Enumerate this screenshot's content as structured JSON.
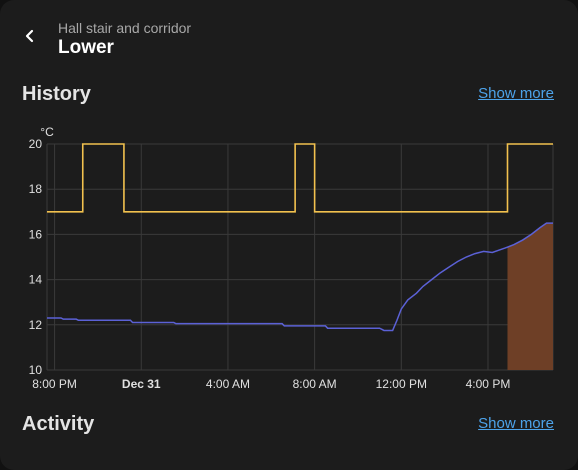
{
  "header": {
    "subtitle": "Hall stair and corridor",
    "title": "Lower",
    "back_icon": "chevron-left-icon"
  },
  "history": {
    "title": "History",
    "show_more": "Show more"
  },
  "activity": {
    "title": "Activity",
    "show_more": "Show more"
  },
  "colors": {
    "background": "#1c1c1c",
    "target_line": "#f2c14e",
    "current_line": "#5b61d6",
    "heating_fill": "#6e3f26",
    "link": "#4da3ea"
  },
  "chart_data": {
    "type": "line",
    "unit_label": "°C",
    "ylim": [
      10,
      20
    ],
    "y_ticks": [
      "10",
      "12",
      "14",
      "16",
      "18",
      "20"
    ],
    "x_range_hours": [
      -0.35,
      23.0
    ],
    "x_ticks": [
      {
        "label": "8:00 PM",
        "hour": 0,
        "bold": false
      },
      {
        "label": "Dec 31",
        "hour": 4,
        "bold": true
      },
      {
        "label": "4:00 AM",
        "hour": 8,
        "bold": false
      },
      {
        "label": "8:00 AM",
        "hour": 12,
        "bold": false
      },
      {
        "label": "12:00 PM",
        "hour": 16,
        "bold": false
      },
      {
        "label": "4:00 PM",
        "hour": 20,
        "bold": false
      }
    ],
    "grid": true,
    "series": [
      {
        "role": "target",
        "step": true,
        "points": [
          [
            -0.35,
            17
          ],
          [
            1.3,
            17
          ],
          [
            1.3,
            20
          ],
          [
            3.2,
            20
          ],
          [
            3.2,
            17
          ],
          [
            11.1,
            17
          ],
          [
            11.1,
            20
          ],
          [
            12.0,
            20
          ],
          [
            12.0,
            17
          ],
          [
            20.9,
            17
          ],
          [
            20.9,
            20
          ],
          [
            23.0,
            20
          ]
        ]
      },
      {
        "role": "current",
        "step": false,
        "points": [
          [
            -0.35,
            12.3
          ],
          [
            0.3,
            12.3
          ],
          [
            0.4,
            12.25
          ],
          [
            1.0,
            12.25
          ],
          [
            1.1,
            12.2
          ],
          [
            3.5,
            12.2
          ],
          [
            3.6,
            12.1
          ],
          [
            5.5,
            12.1
          ],
          [
            5.6,
            12.05
          ],
          [
            10.5,
            12.05
          ],
          [
            10.6,
            11.95
          ],
          [
            12.5,
            11.95
          ],
          [
            12.6,
            11.85
          ],
          [
            15.0,
            11.85
          ],
          [
            15.2,
            11.75
          ],
          [
            15.6,
            11.75
          ],
          [
            15.8,
            12.2
          ],
          [
            16.0,
            12.7
          ],
          [
            16.3,
            13.1
          ],
          [
            16.7,
            13.4
          ],
          [
            17.0,
            13.7
          ],
          [
            17.4,
            14.0
          ],
          [
            17.8,
            14.3
          ],
          [
            18.2,
            14.55
          ],
          [
            18.6,
            14.8
          ],
          [
            19.0,
            15.0
          ],
          [
            19.4,
            15.15
          ],
          [
            19.8,
            15.25
          ],
          [
            20.2,
            15.2
          ],
          [
            20.5,
            15.3
          ],
          [
            20.8,
            15.4
          ],
          [
            21.2,
            15.55
          ],
          [
            21.6,
            15.75
          ],
          [
            22.0,
            16.0
          ],
          [
            22.4,
            16.3
          ],
          [
            22.7,
            16.5
          ],
          [
            23.0,
            16.5
          ]
        ]
      }
    ],
    "heating_region": {
      "x_start": 20.9,
      "x_end": 23.0
    }
  }
}
